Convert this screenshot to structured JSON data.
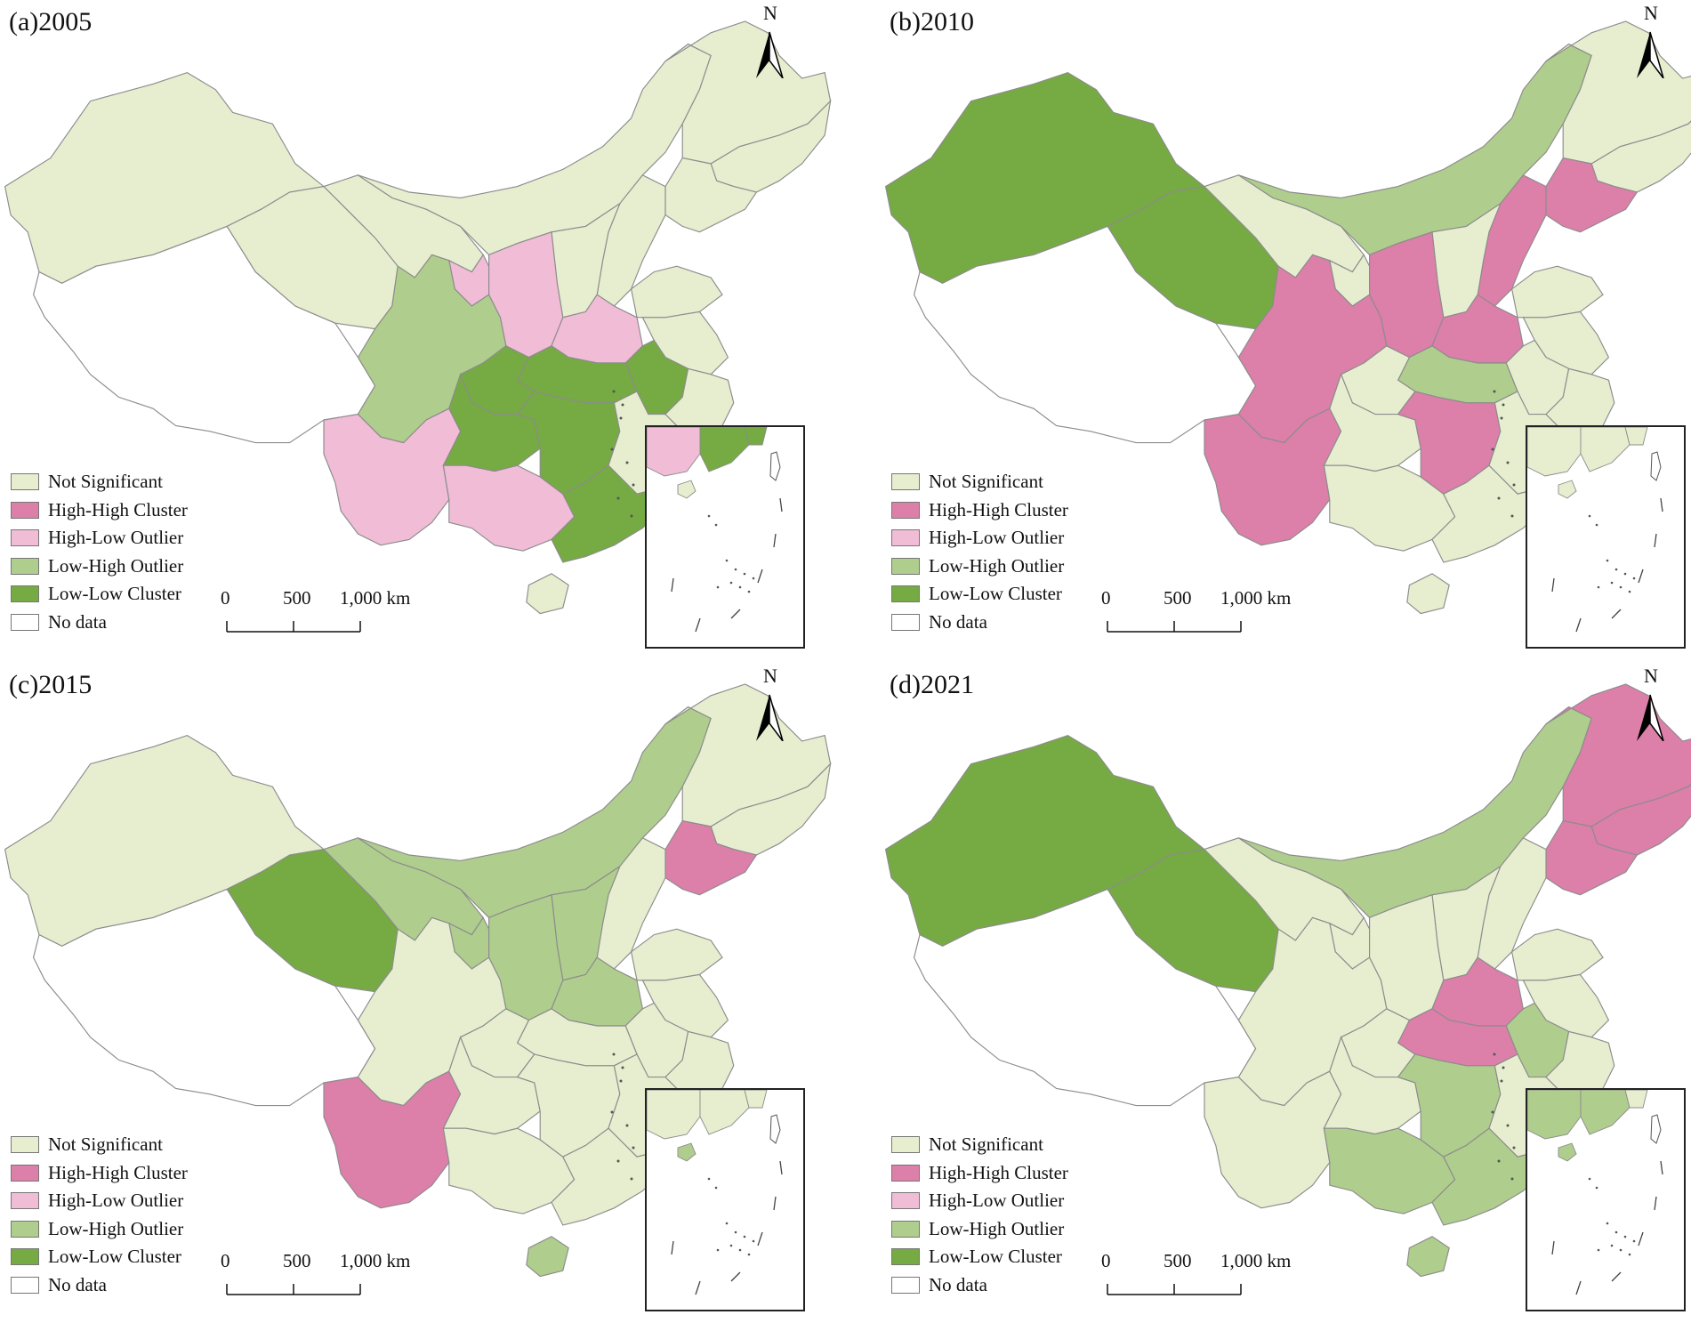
{
  "colors": {
    "not_significant": "#e6eecf",
    "high_high": "#dc7fa9",
    "high_low": "#f0bcd6",
    "low_high": "#afcd8d",
    "low_low": "#76aa43",
    "no_data": "#ffffff",
    "border": "#8c8c8c"
  },
  "legend": {
    "items": [
      {
        "key": "not_significant",
        "label": "Not Significant"
      },
      {
        "key": "high_high",
        "label": "High-High Cluster"
      },
      {
        "key": "high_low",
        "label": "High-Low Outlier"
      },
      {
        "key": "low_high",
        "label": "Low-High Outlier"
      },
      {
        "key": "low_low",
        "label": "Low-Low Cluster"
      },
      {
        "key": "no_data",
        "label": "No data"
      }
    ]
  },
  "scalebar": {
    "label_0": "0",
    "label_500": "500",
    "label_1000": "1,000 km"
  },
  "north_label": "N",
  "panels": [
    {
      "title": "(a)2005",
      "regions": {
        "xinjiang": "not_significant",
        "tibet": "no_data",
        "qinghai": "not_significant",
        "gansu": "not_significant",
        "inner_mongolia": "not_significant",
        "heilongjiang": "not_significant",
        "jilin": "not_significant",
        "liaoning": "not_significant",
        "hebei": "not_significant",
        "shanxi": "not_significant",
        "ningxia": "high_low",
        "shaanxi": "high_low",
        "henan": "high_low",
        "shandong": "not_significant",
        "jiangsu": "not_significant",
        "anhui": "low_low",
        "hubei": "low_low",
        "sichuan": "low_high",
        "chongqing": "low_low",
        "yunnan": "high_low",
        "guizhou": "low_low",
        "guangxi": "high_low",
        "hunan": "low_low",
        "jiangxi": "not_significant",
        "zhejiang": "not_significant",
        "fujian": "low_low",
        "guangdong": "low_low",
        "hainan": "not_significant",
        "taiwan": "no_data"
      }
    },
    {
      "title": "(b)2010",
      "regions": {
        "xinjiang": "low_low",
        "tibet": "no_data",
        "qinghai": "low_low",
        "gansu": "not_significant",
        "inner_mongolia": "low_high",
        "heilongjiang": "not_significant",
        "jilin": "not_significant",
        "liaoning": "high_high",
        "hebei": "high_high",
        "shanxi": "not_significant",
        "ningxia": "not_significant",
        "shaanxi": "high_high",
        "henan": "high_high",
        "shandong": "not_significant",
        "jiangsu": "not_significant",
        "anhui": "not_significant",
        "hubei": "low_high",
        "sichuan": "high_high",
        "chongqing": "not_significant",
        "yunnan": "high_high",
        "guizhou": "not_significant",
        "guangxi": "not_significant",
        "hunan": "high_high",
        "jiangxi": "not_significant",
        "zhejiang": "not_significant",
        "fujian": "not_significant",
        "guangdong": "not_significant",
        "hainan": "not_significant",
        "taiwan": "no_data"
      }
    },
    {
      "title": "(c)2015",
      "regions": {
        "xinjiang": "not_significant",
        "tibet": "no_data",
        "qinghai": "low_low",
        "gansu": "low_high",
        "inner_mongolia": "low_high",
        "heilongjiang": "not_significant",
        "jilin": "not_significant",
        "liaoning": "high_high",
        "hebei": "not_significant",
        "shanxi": "low_high",
        "ningxia": "low_high",
        "shaanxi": "low_high",
        "henan": "low_high",
        "shandong": "not_significant",
        "jiangsu": "not_significant",
        "anhui": "not_significant",
        "hubei": "not_significant",
        "sichuan": "not_significant",
        "chongqing": "not_significant",
        "yunnan": "high_high",
        "guizhou": "not_significant",
        "guangxi": "not_significant",
        "hunan": "not_significant",
        "jiangxi": "not_significant",
        "zhejiang": "not_significant",
        "fujian": "not_significant",
        "guangdong": "not_significant",
        "hainan": "low_high",
        "taiwan": "no_data"
      }
    },
    {
      "title": "(d)2021",
      "regions": {
        "xinjiang": "low_low",
        "tibet": "no_data",
        "qinghai": "low_low",
        "gansu": "not_significant",
        "inner_mongolia": "low_high",
        "heilongjiang": "high_high",
        "jilin": "high_high",
        "liaoning": "high_high",
        "hebei": "not_significant",
        "shanxi": "not_significant",
        "ningxia": "not_significant",
        "shaanxi": "not_significant",
        "henan": "high_high",
        "shandong": "not_significant",
        "jiangsu": "not_significant",
        "anhui": "low_high",
        "hubei": "high_high",
        "sichuan": "not_significant",
        "chongqing": "not_significant",
        "yunnan": "not_significant",
        "guizhou": "not_significant",
        "guangxi": "low_high",
        "hunan": "low_high",
        "jiangxi": "not_significant",
        "zhejiang": "not_significant",
        "fujian": "not_significant",
        "guangdong": "low_high",
        "hainan": "low_high",
        "taiwan": "no_data"
      }
    }
  ]
}
